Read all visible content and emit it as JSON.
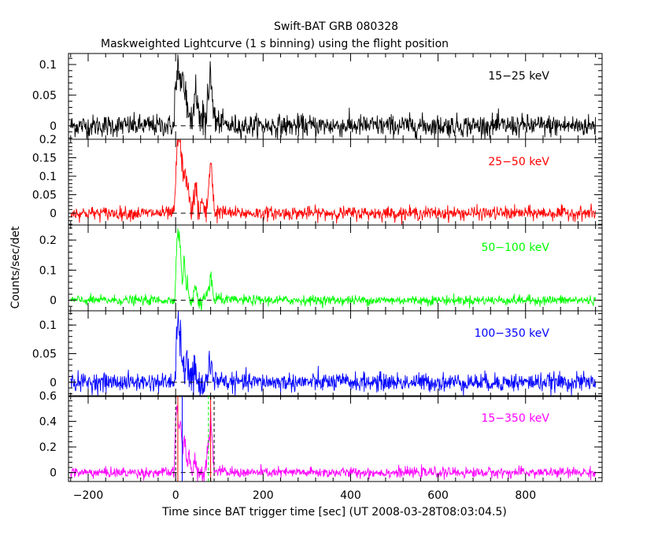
{
  "chart_data": {
    "type": "line",
    "title": "Swift-BAT GRB 080328",
    "subtitle": "Maskweighted Lightcurve (1 s binning) using the flight position",
    "xlabel": "Time since BAT trigger time [sec] (UT 2008-03-28T08:03:04.5)",
    "ylabel": "Counts/sec/det",
    "xlim": [
      -245,
      975
    ],
    "x_ticks": [
      -200,
      0,
      200,
      400,
      600,
      800
    ],
    "x_tick_labels": [
      "−200",
      "0",
      "200",
      "400",
      "600",
      "800"
    ],
    "grid": false,
    "legend": "per-panel band label, top-right",
    "series": [
      {
        "name": "15−25 keV",
        "color": "#000000",
        "ylim": [
          -0.022,
          0.118
        ],
        "y_ticks": [
          0,
          0.05,
          0.1
        ],
        "y_tick_labels": [
          "0",
          "0.05",
          "0.1"
        ],
        "noise_sigma": 0.009,
        "pulses": [
          [
            0,
            10,
            0.055
          ],
          [
            8,
            4,
            0.04
          ],
          [
            20,
            6,
            0.06
          ],
          [
            45,
            6,
            0.05
          ],
          [
            80,
            5,
            0.075
          ],
          [
            62,
            3,
            0.025
          ]
        ]
      },
      {
        "name": "25−50 keV",
        "color": "#ff0000",
        "ylim": [
          -0.032,
          0.2
        ],
        "y_ticks": [
          0,
          0.05,
          0.1,
          0.15,
          0.2
        ],
        "y_tick_labels": [
          "0",
          "0.05",
          "0.1",
          "0.15",
          "0.2"
        ],
        "noise_sigma": 0.009,
        "pulses": [
          [
            5,
            4,
            0.16
          ],
          [
            12,
            5,
            0.12
          ],
          [
            22,
            4,
            0.09
          ],
          [
            30,
            3,
            0.04
          ],
          [
            45,
            4,
            0.06
          ],
          [
            80,
            4,
            0.13
          ],
          [
            60,
            3,
            0.03
          ]
        ]
      },
      {
        "name": "50−100 keV",
        "color": "#00ff00",
        "ylim": [
          -0.035,
          0.25
        ],
        "y_ticks": [
          0,
          0.1,
          0.2
        ],
        "y_tick_labels": [
          "0",
          "0.1",
          "0.2"
        ],
        "noise_sigma": 0.008,
        "pulses": [
          [
            4,
            3,
            0.2
          ],
          [
            10,
            3,
            0.16
          ],
          [
            20,
            3,
            0.12
          ],
          [
            28,
            2,
            0.05
          ],
          [
            45,
            3,
            0.04
          ],
          [
            80,
            3,
            0.08
          ]
        ]
      },
      {
        "name": "100−350 keV",
        "color": "#0000ff",
        "ylim": [
          -0.025,
          0.125
        ],
        "y_ticks": [
          0,
          0.05,
          0.1
        ],
        "y_tick_labels": [
          "0",
          "0.05",
          "0.1"
        ],
        "noise_sigma": 0.008,
        "pulses": [
          [
            5,
            3,
            0.1
          ],
          [
            12,
            3,
            0.065
          ],
          [
            25,
            3,
            0.045
          ],
          [
            42,
            3,
            0.015
          ],
          [
            80,
            3,
            0.035
          ]
        ]
      },
      {
        "name": "15−350 keV",
        "color": "#ff00ff",
        "ylim": [
          -0.07,
          0.6
        ],
        "y_ticks": [
          0,
          0.2,
          0.4,
          0.6
        ],
        "y_tick_labels": [
          "0",
          "0.2",
          "0.4",
          "0.6"
        ],
        "noise_sigma": 0.02,
        "pulses": [
          [
            2,
            3,
            0.45
          ],
          [
            10,
            4,
            0.35
          ],
          [
            20,
            3,
            0.25
          ],
          [
            30,
            3,
            0.12
          ],
          [
            45,
            3,
            0.1
          ],
          [
            80,
            4,
            0.4
          ],
          [
            72,
            2,
            0.15
          ]
        ],
        "markers": [
          {
            "x": 0,
            "color": "#000000",
            "dash": "4,3"
          },
          {
            "x": 5,
            "color": "#ff0000",
            "dash": ""
          },
          {
            "x": 15,
            "color": "#0000ff",
            "dash": ""
          },
          {
            "x": 75,
            "color": "#00ff00",
            "dash": "4,3"
          },
          {
            "x": 80,
            "color": "#ff0000",
            "dash": ""
          },
          {
            "x": 88,
            "color": "#000000",
            "dash": "4,3"
          }
        ]
      }
    ],
    "x_range": [
      -240,
      960
    ],
    "pulse_start": -2,
    "pulse_end": 95
  }
}
